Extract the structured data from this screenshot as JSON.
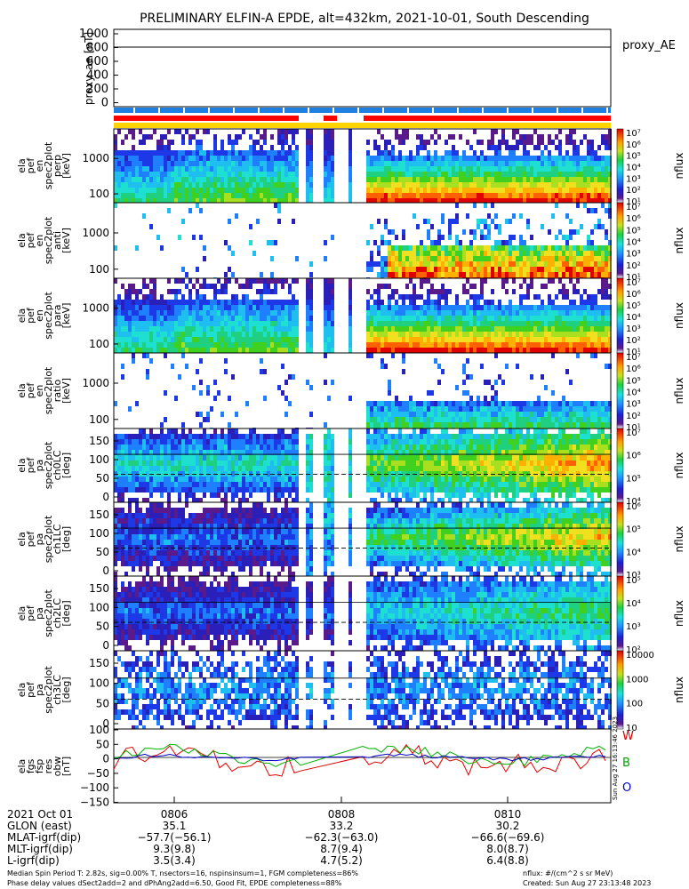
{
  "title": "PRELIMINARY ELFIN-A EPDE, alt=432km, 2021-10-01, South Descending",
  "colors": {
    "red_bar": "#ff0000",
    "blue_bar": "#1e7fe0",
    "yellow_bar": "#ffd400",
    "w_color": "#cc0000",
    "b_color": "#00a000",
    "o_color": "#0000cc"
  },
  "chart_data": [
    {
      "type": "line",
      "panel": "proxy_ae",
      "ylabel": "proxy_ae [nT]",
      "legend": "proxy_AE",
      "yticks": [
        "1000",
        "800",
        "600",
        "400",
        "200",
        "0"
      ],
      "ylim": [
        -100,
        1000
      ],
      "series": [
        {
          "name": "proxy_AE",
          "values": [
            790,
            790
          ]
        }
      ]
    },
    {
      "type": "heatmap",
      "panel": "ela_pef_en_spec2plot_perp",
      "ylabel": [
        "ela",
        "pef",
        "en",
        "spec2plot",
        "perp",
        "[keV]"
      ],
      "yticks": [
        "1000",
        "100"
      ],
      "scale": "log",
      "cbar_label": "nflux",
      "cbar_ticks": [
        "10⁷",
        "10⁶",
        "10⁵",
        "10⁴",
        "10³",
        "10²",
        "10¹"
      ]
    },
    {
      "type": "heatmap",
      "panel": "ela_pef_en_spec2plot_anti",
      "ylabel": [
        "ela",
        "pef",
        "en",
        "spec2plot",
        "anti",
        "[keV]"
      ],
      "yticks": [
        "1000",
        "100"
      ],
      "scale": "log",
      "cbar_label": "nflux",
      "cbar_ticks": [
        "10⁷",
        "10⁶",
        "10⁵",
        "10⁴",
        "10³",
        "10²",
        "10¹"
      ]
    },
    {
      "type": "heatmap",
      "panel": "ela_pef_en_spec2plot_para",
      "ylabel": [
        "ela",
        "pef",
        "en",
        "spec2plot",
        "para",
        "[keV]"
      ],
      "yticks": [
        "1000",
        "100"
      ],
      "scale": "log",
      "cbar_label": "nflux",
      "cbar_ticks": [
        "10⁷",
        "10⁶",
        "10⁵",
        "10⁴",
        "10³",
        "10²",
        "10¹"
      ]
    },
    {
      "type": "heatmap",
      "panel": "ela_pef_en_spec2plot_ratio",
      "ylabel": [
        "ela",
        "pef",
        "en",
        "spec2plot",
        "ratio",
        "[keV]"
      ],
      "yticks": [
        "1000",
        "100"
      ],
      "scale": "log",
      "cbar_label": "nflux",
      "cbar_ticks": [
        "10⁷",
        "10⁶",
        "10⁵",
        "10⁴",
        "10³",
        "10²",
        "10¹"
      ]
    },
    {
      "type": "heatmap",
      "panel": "ela_pef_pa_spec2plot_ch0LC",
      "ylabel": [
        "ela",
        "pef",
        "pa",
        "spec2plot",
        "ch0LC",
        "[deg]"
      ],
      "yticks": [
        "150",
        "100",
        "50",
        "0"
      ],
      "scale": "linear",
      "cbar_label": "nflux",
      "cbar_ticks": [
        "10⁷",
        "10⁶",
        "10⁵",
        "10⁴"
      ]
    },
    {
      "type": "heatmap",
      "panel": "ela_pef_pa_spec2plot_ch1LC",
      "ylabel": [
        "ela",
        "pef",
        "pa",
        "spec2plot",
        "ch1LC",
        "[deg]"
      ],
      "yticks": [
        "150",
        "100",
        "50",
        "0"
      ],
      "scale": "linear",
      "cbar_label": "nflux",
      "cbar_ticks": [
        "10⁶",
        "10⁵",
        "10⁴",
        "10³"
      ]
    },
    {
      "type": "heatmap",
      "panel": "ela_pef_pa_spec2plot_ch2LC",
      "ylabel": [
        "ela",
        "pef",
        "pa",
        "spec2plot",
        "ch2LC",
        "[deg]"
      ],
      "yticks": [
        "150",
        "100",
        "50",
        "0"
      ],
      "scale": "linear",
      "cbar_label": "nflux",
      "cbar_ticks": [
        "10⁵",
        "10⁴",
        "10³",
        "10²"
      ]
    },
    {
      "type": "heatmap",
      "panel": "ela_pef_pa_spec2plot_ch3LC",
      "ylabel": [
        "ela",
        "pef",
        "pa",
        "spec2plot",
        "ch3LC",
        "[deg]"
      ],
      "yticks": [
        "150",
        "100",
        "50",
        "0"
      ],
      "scale": "linear",
      "cbar_label": "nflux",
      "cbar_ticks": [
        "10000",
        "1000",
        "100",
        "10"
      ]
    },
    {
      "type": "line",
      "panel": "ela_fgs_fsp_res_obw",
      "ylabel": [
        "ela",
        "fgs",
        "fsp",
        "res",
        "obw",
        "[nT]"
      ],
      "yticks": [
        "100",
        "50",
        "0",
        "−50",
        "−100",
        "−150"
      ],
      "ylim": [
        -160,
        100
      ],
      "legend": [
        "W",
        "B",
        "O"
      ]
    }
  ],
  "side_stamp": "Sun Aug 27 16:13:46 2023",
  "footer": {
    "row_labels": [
      "2021 Oct 01",
      "GLON (east)",
      "MLAT-igrf(dip)",
      "MLT-igrf(dip)",
      "L-igrf(dip)"
    ],
    "columns": [
      {
        "time": "0806",
        "glon": "35.1",
        "mlat": "−57.7(−56.1)",
        "mlt": "9.3(9.8)",
        "l": "3.5(3.4)"
      },
      {
        "time": "0808",
        "glon": "33.2",
        "mlat": "−62.3(−63.0)",
        "mlt": "8.7(9.4)",
        "l": "4.7(5.2)"
      },
      {
        "time": "0810",
        "glon": "30.2",
        "mlat": "−66.6(−69.6)",
        "mlt": "8.0(8.7)",
        "l": "6.4(8.8)"
      }
    ],
    "note1": "Median Spin Period T: 2.82s, sig=0.00% T, nsectors=16, nspinsinsum=1, FGM completeness=86%",
    "note2": "Phase delay values dSect2add=2 and dPhAng2add=6.50, Good Fit, EPDE completeness=88%",
    "units": "nflux: #/(cm^2 s sr MeV)",
    "created": "Created: Sun Aug 27 23:13:48 2023"
  }
}
